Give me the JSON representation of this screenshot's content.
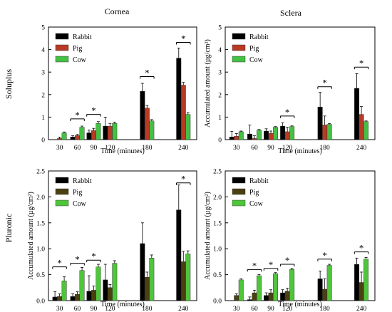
{
  "figure": {
    "column_titles": [
      "Cornea",
      "Sclera"
    ],
    "row_titles": [
      "Soluplus",
      "Pluronic"
    ]
  },
  "colors": {
    "Rabbit": "#000000",
    "Pig": "#b83a25",
    "Cow": "#44c044",
    "Pig_pluronic": "#4a4012",
    "Cow_pluronic": "#4fc53b"
  },
  "chart_data": [
    {
      "type": "bar",
      "panel": "soluplus-cornea",
      "xlabel": "Time (minutes)",
      "ylabel": "",
      "ylim": [
        0,
        5
      ],
      "yticks": [
        "0",
        "1",
        "2",
        "3",
        "4",
        "5"
      ],
      "categories": [
        "30",
        "60",
        "90",
        "120",
        "180",
        "240"
      ],
      "legend": "top-left",
      "series": [
        {
          "name": "Rabbit",
          "values": [
            0.0,
            0.12,
            0.3,
            0.6,
            2.15,
            3.62
          ],
          "errors": [
            0.0,
            0.05,
            0.12,
            0.4,
            0.35,
            0.45
          ]
        },
        {
          "name": "Pig",
          "values": [
            0.05,
            0.18,
            0.4,
            0.6,
            1.4,
            2.42
          ],
          "errors": [
            0.06,
            0.05,
            0.1,
            0.12,
            0.12,
            0.12
          ]
        },
        {
          "name": "Cow",
          "values": [
            0.3,
            0.55,
            0.72,
            0.72,
            0.83,
            1.12
          ],
          "errors": [
            0.04,
            0.05,
            0.08,
            0.06,
            0.06,
            0.08
          ]
        }
      ],
      "significance": [
        {
          "category": "60",
          "y": 0.92
        },
        {
          "category": "90",
          "y": 1.12
        },
        {
          "category": "180",
          "y": 2.8
        },
        {
          "category": "240",
          "y": 4.32
        }
      ]
    },
    {
      "type": "bar",
      "panel": "soluplus-sclera",
      "xlabel": "Time (minutes)",
      "ylabel": "Accumulated amount (µg/cm²)",
      "ylim": [
        0,
        5
      ],
      "yticks": [
        "0",
        "1",
        "2",
        "3",
        "4",
        "5"
      ],
      "categories": [
        "30",
        "60",
        "90",
        "120",
        "180",
        "240"
      ],
      "legend": "top-left",
      "series": [
        {
          "name": "Rabbit",
          "values": [
            0.12,
            0.25,
            0.38,
            0.6,
            1.45,
            2.28
          ],
          "errors": [
            0.25,
            0.4,
            0.1,
            0.15,
            0.65,
            0.65
          ]
        },
        {
          "name": "Pig",
          "values": [
            0.15,
            0.05,
            0.28,
            0.35,
            0.65,
            1.12
          ],
          "errors": [
            0.12,
            0.12,
            0.1,
            0.2,
            0.4,
            0.35
          ]
        },
        {
          "name": "Cow",
          "values": [
            0.35,
            0.42,
            0.55,
            0.58,
            0.68,
            0.8
          ],
          "errors": [
            0.03,
            0.03,
            0.03,
            0.03,
            0.03,
            0.03
          ]
        }
      ],
      "significance": [
        {
          "category": "120",
          "y": 1.05
        },
        {
          "category": "180",
          "y": 2.35
        },
        {
          "category": "240",
          "y": 3.22
        }
      ]
    },
    {
      "type": "bar",
      "panel": "pluronic-cornea",
      "xlabel": "Time (minutes)",
      "ylabel": "Accumulated amount (µg/cm²)",
      "ylim": [
        0,
        2.5
      ],
      "yticks": [
        "0.0",
        "0.5",
        "1.0",
        "1.5",
        "2.0",
        "2.5"
      ],
      "categories": [
        "30",
        "60",
        "90",
        "120",
        "180",
        "240"
      ],
      "legend": "top-left",
      "series": [
        {
          "name": "Rabbit",
          "values": [
            0.07,
            0.08,
            0.18,
            0.4,
            1.1,
            1.75
          ],
          "errors": [
            0.1,
            0.05,
            0.3,
            0.3,
            0.4,
            0.48
          ]
        },
        {
          "name": "Pig",
          "values": [
            0.08,
            0.12,
            0.2,
            0.25,
            0.45,
            0.75
          ],
          "errors": [
            0.05,
            0.05,
            0.08,
            0.06,
            0.1,
            0.2
          ]
        },
        {
          "name": "Cow",
          "values": [
            0.38,
            0.58,
            0.65,
            0.72,
            0.82,
            0.9
          ],
          "errors": [
            0.08,
            0.06,
            0.05,
            0.05,
            0.06,
            0.06
          ]
        }
      ],
      "significance": [
        {
          "category": "30",
          "y": 0.65
        },
        {
          "category": "60",
          "y": 0.72
        },
        {
          "category": "90",
          "y": 0.78
        },
        {
          "category": "240",
          "y": 2.27
        }
      ]
    },
    {
      "type": "bar",
      "panel": "pluronic-sclera",
      "xlabel": "Time (minutes)",
      "ylabel": "Accumulated amount (µg/cm²)",
      "ylim": [
        0,
        2.5
      ],
      "yticks": [
        "0.0",
        "0.5",
        "1.0",
        "1.5",
        "2.0",
        "2.5"
      ],
      "categories": [
        "30",
        "60",
        "90",
        "120",
        "180",
        "240"
      ],
      "legend": "top-left",
      "series": [
        {
          "name": "Rabbit",
          "values": [
            0.0,
            0.02,
            0.1,
            0.15,
            0.42,
            0.7
          ],
          "errors": [
            0.0,
            0.05,
            0.05,
            0.06,
            0.15,
            0.12
          ]
        },
        {
          "name": "Pig",
          "values": [
            0.1,
            0.15,
            0.15,
            0.18,
            0.22,
            0.35
          ],
          "errors": [
            0.03,
            0.05,
            0.06,
            0.06,
            0.2,
            0.2
          ]
        },
        {
          "name": "Cow",
          "values": [
            0.4,
            0.48,
            0.52,
            0.6,
            0.68,
            0.8
          ],
          "errors": [
            0.02,
            0.02,
            0.02,
            0.02,
            0.02,
            0.03
          ]
        }
      ],
      "significance": [
        {
          "category": "60",
          "y": 0.6
        },
        {
          "category": "90",
          "y": 0.62
        },
        {
          "category": "120",
          "y": 0.7
        },
        {
          "category": "180",
          "y": 0.8
        },
        {
          "category": "240",
          "y": 0.94
        }
      ]
    }
  ]
}
